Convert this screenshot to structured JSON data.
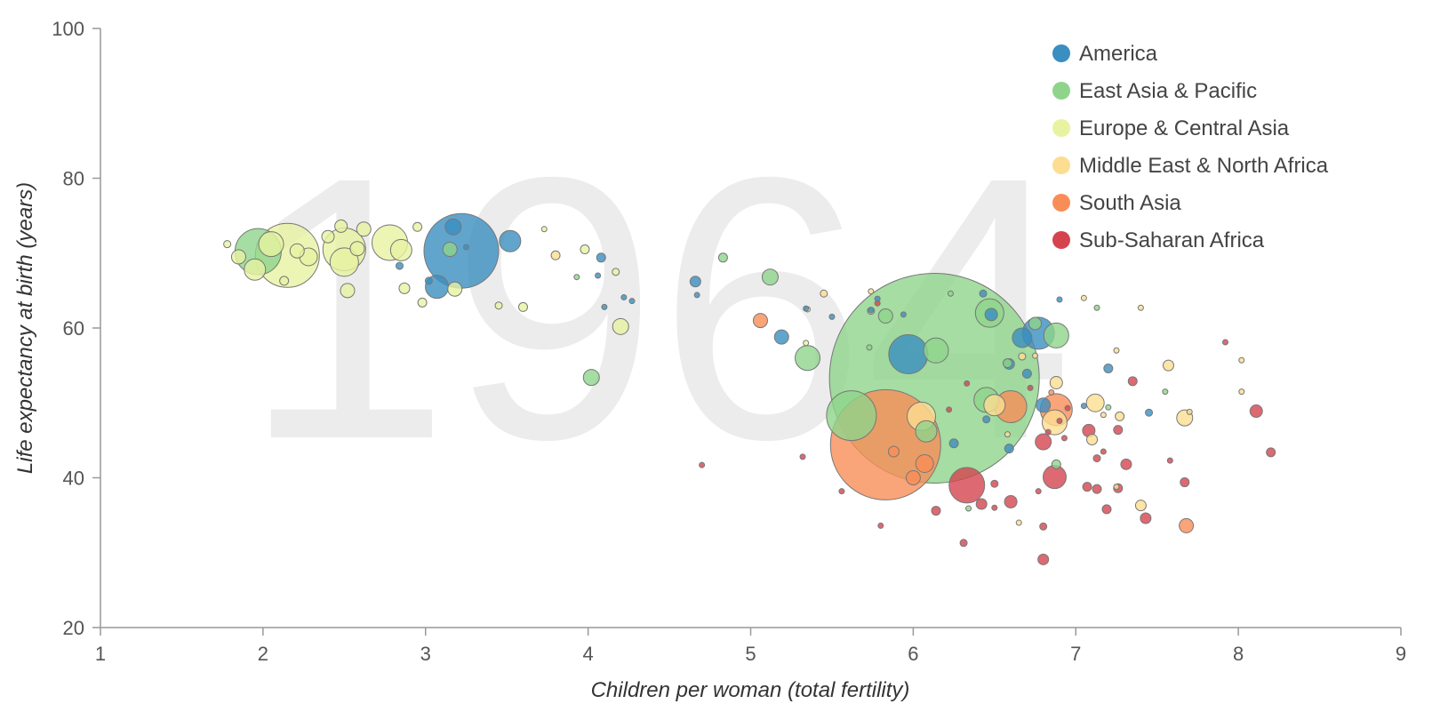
{
  "chart_data": {
    "type": "scatter",
    "subtype": "bubble",
    "year": "1964",
    "xlabel": "Children per woman (total fertility)",
    "ylabel": "Life expectancy at birth (years)",
    "xlim": [
      1,
      9
    ],
    "ylim": [
      20,
      100
    ],
    "xticks": [
      "1",
      "2",
      "3",
      "4",
      "5",
      "6",
      "7",
      "8",
      "9"
    ],
    "yticks": [
      "20",
      "40",
      "60",
      "80",
      "100"
    ],
    "legend_position": "top-right",
    "regions": [
      {
        "key": "america",
        "name": "America",
        "color": "#3a8ec0"
      },
      {
        "key": "eap",
        "name": "East Asia & Pacific",
        "color": "#8fd48b"
      },
      {
        "key": "eca",
        "name": "Europe & Central Asia",
        "color": "#e7f3a1"
      },
      {
        "key": "mena",
        "name": "Middle East & North Africa",
        "color": "#fcdd91"
      },
      {
        "key": "sa",
        "name": "South Asia",
        "color": "#f98d58"
      },
      {
        "key": "ssa",
        "name": "Sub-Saharan Africa",
        "color": "#d5434f"
      }
    ],
    "points": [
      {
        "region": "eca",
        "x": 2.15,
        "y": 69.7,
        "size": 36
      },
      {
        "region": "eca",
        "x": 2.05,
        "y": 71.2,
        "size": 14
      },
      {
        "region": "eca",
        "x": 2.5,
        "y": 70.5,
        "size": 24
      },
      {
        "region": "eca",
        "x": 2.78,
        "y": 71.4,
        "size": 20
      },
      {
        "region": "eca",
        "x": 2.85,
        "y": 70.4,
        "size": 12
      },
      {
        "region": "eca",
        "x": 2.5,
        "y": 68.8,
        "size": 16
      },
      {
        "region": "eca",
        "x": 1.95,
        "y": 67.8,
        "size": 12
      },
      {
        "region": "eca",
        "x": 1.85,
        "y": 69.5,
        "size": 8
      },
      {
        "region": "eca",
        "x": 2.28,
        "y": 69.5,
        "size": 10
      },
      {
        "region": "eca",
        "x": 2.48,
        "y": 73.6,
        "size": 7
      },
      {
        "region": "eca",
        "x": 2.62,
        "y": 73.2,
        "size": 8
      },
      {
        "region": "eca",
        "x": 2.58,
        "y": 70.6,
        "size": 8
      },
      {
        "region": "eca",
        "x": 2.4,
        "y": 72.2,
        "size": 7
      },
      {
        "region": "eca",
        "x": 2.21,
        "y": 70.3,
        "size": 8
      },
      {
        "region": "eca",
        "x": 2.52,
        "y": 65.0,
        "size": 8
      },
      {
        "region": "eca",
        "x": 2.87,
        "y": 65.3,
        "size": 6
      },
      {
        "region": "eca",
        "x": 2.98,
        "y": 63.4,
        "size": 5
      },
      {
        "region": "eca",
        "x": 2.95,
        "y": 73.5,
        "size": 5
      },
      {
        "region": "eca",
        "x": 3.18,
        "y": 65.2,
        "size": 8
      },
      {
        "region": "eca",
        "x": 3.6,
        "y": 62.8,
        "size": 5
      },
      {
        "region": "eca",
        "x": 3.45,
        "y": 63.0,
        "size": 4
      },
      {
        "region": "eca",
        "x": 3.98,
        "y": 70.5,
        "size": 5
      },
      {
        "region": "eca",
        "x": 4.17,
        "y": 67.5,
        "size": 4
      },
      {
        "region": "eca",
        "x": 4.2,
        "y": 60.2,
        "size": 9
      },
      {
        "region": "eca",
        "x": 3.73,
        "y": 73.2,
        "size": 3
      },
      {
        "region": "eca",
        "x": 5.35,
        "y": 62.5,
        "size": 3
      },
      {
        "region": "eca",
        "x": 5.34,
        "y": 58.0,
        "size": 3
      },
      {
        "region": "eca",
        "x": 1.78,
        "y": 71.2,
        "size": 4
      },
      {
        "region": "eca",
        "x": 2.13,
        "y": 66.3,
        "size": 5
      },
      {
        "region": "eap",
        "x": 1.97,
        "y": 70.2,
        "size": 26
      },
      {
        "region": "eap",
        "x": 3.15,
        "y": 70.5,
        "size": 8
      },
      {
        "region": "eap",
        "x": 4.83,
        "y": 69.4,
        "size": 5
      },
      {
        "region": "eap",
        "x": 3.93,
        "y": 66.8,
        "size": 3
      },
      {
        "region": "eap",
        "x": 5.12,
        "y": 66.8,
        "size": 9
      },
      {
        "region": "eap",
        "x": 4.02,
        "y": 53.4,
        "size": 9
      },
      {
        "region": "eap",
        "x": 5.35,
        "y": 56.0,
        "size": 14
      },
      {
        "region": "eap",
        "x": 6.13,
        "y": 53.3,
        "size": 118
      },
      {
        "region": "eap",
        "x": 5.62,
        "y": 48.3,
        "size": 28
      },
      {
        "region": "eap",
        "x": 6.14,
        "y": 57.0,
        "size": 14
      },
      {
        "region": "eap",
        "x": 6.08,
        "y": 46.2,
        "size": 12
      },
      {
        "region": "eap",
        "x": 6.47,
        "y": 62.0,
        "size": 16
      },
      {
        "region": "eap",
        "x": 6.88,
        "y": 59.0,
        "size": 14
      },
      {
        "region": "eap",
        "x": 6.45,
        "y": 50.4,
        "size": 14
      },
      {
        "region": "eap",
        "x": 5.74,
        "y": 62.3,
        "size": 4
      },
      {
        "region": "eap",
        "x": 5.83,
        "y": 61.6,
        "size": 8
      },
      {
        "region": "eap",
        "x": 6.23,
        "y": 64.6,
        "size": 3
      },
      {
        "region": "eap",
        "x": 6.58,
        "y": 55.3,
        "size": 5
      },
      {
        "region": "eap",
        "x": 6.88,
        "y": 41.8,
        "size": 5
      },
      {
        "region": "eap",
        "x": 7.13,
        "y": 62.7,
        "size": 3
      },
      {
        "region": "eap",
        "x": 7.2,
        "y": 49.4,
        "size": 3
      },
      {
        "region": "eap",
        "x": 7.55,
        "y": 51.5,
        "size": 3
      },
      {
        "region": "eap",
        "x": 5.73,
        "y": 57.4,
        "size": 3
      },
      {
        "region": "eap",
        "x": 6.34,
        "y": 35.9,
        "size": 3
      },
      {
        "region": "eap",
        "x": 6.75,
        "y": 60.6,
        "size": 7
      },
      {
        "region": "america",
        "x": 3.22,
        "y": 70.3,
        "size": 42
      },
      {
        "region": "america",
        "x": 3.07,
        "y": 65.5,
        "size": 13
      },
      {
        "region": "america",
        "x": 3.52,
        "y": 71.6,
        "size": 12
      },
      {
        "region": "america",
        "x": 3.17,
        "y": 73.5,
        "size": 9
      },
      {
        "region": "america",
        "x": 3.02,
        "y": 66.3,
        "size": 4
      },
      {
        "region": "america",
        "x": 2.84,
        "y": 68.3,
        "size": 4
      },
      {
        "region": "america",
        "x": 4.08,
        "y": 69.4,
        "size": 5
      },
      {
        "region": "america",
        "x": 4.06,
        "y": 67.0,
        "size": 3
      },
      {
        "region": "america",
        "x": 4.1,
        "y": 62.8,
        "size": 3
      },
      {
        "region": "america",
        "x": 4.22,
        "y": 64.1,
        "size": 3
      },
      {
        "region": "america",
        "x": 4.27,
        "y": 63.6,
        "size": 3
      },
      {
        "region": "america",
        "x": 4.66,
        "y": 66.2,
        "size": 6
      },
      {
        "region": "america",
        "x": 4.67,
        "y": 64.4,
        "size": 3
      },
      {
        "region": "america",
        "x": 5.19,
        "y": 58.8,
        "size": 8
      },
      {
        "region": "america",
        "x": 5.34,
        "y": 62.6,
        "size": 3
      },
      {
        "region": "america",
        "x": 5.5,
        "y": 61.5,
        "size": 3
      },
      {
        "region": "america",
        "x": 5.74,
        "y": 62.4,
        "size": 3
      },
      {
        "region": "america",
        "x": 5.78,
        "y": 63.9,
        "size": 3
      },
      {
        "region": "america",
        "x": 5.94,
        "y": 61.8,
        "size": 3
      },
      {
        "region": "america",
        "x": 5.97,
        "y": 56.5,
        "size": 22
      },
      {
        "region": "america",
        "x": 6.43,
        "y": 64.6,
        "size": 4
      },
      {
        "region": "america",
        "x": 6.48,
        "y": 61.8,
        "size": 7
      },
      {
        "region": "america",
        "x": 6.77,
        "y": 59.3,
        "size": 18
      },
      {
        "region": "america",
        "x": 6.67,
        "y": 58.7,
        "size": 11
      },
      {
        "region": "america",
        "x": 6.59,
        "y": 55.2,
        "size": 6
      },
      {
        "region": "america",
        "x": 6.9,
        "y": 63.8,
        "size": 3
      },
      {
        "region": "america",
        "x": 6.8,
        "y": 49.7,
        "size": 8
      },
      {
        "region": "america",
        "x": 6.59,
        "y": 43.9,
        "size": 5
      },
      {
        "region": "america",
        "x": 6.25,
        "y": 44.6,
        "size": 5
      },
      {
        "region": "america",
        "x": 6.7,
        "y": 53.9,
        "size": 5
      },
      {
        "region": "america",
        "x": 7.2,
        "y": 54.6,
        "size": 5
      },
      {
        "region": "america",
        "x": 7.05,
        "y": 49.6,
        "size": 3
      },
      {
        "region": "america",
        "x": 7.45,
        "y": 48.7,
        "size": 4
      },
      {
        "region": "america",
        "x": 6.45,
        "y": 47.8,
        "size": 4
      },
      {
        "region": "america",
        "x": 3.25,
        "y": 70.8,
        "size": 3
      },
      {
        "region": "mena",
        "x": 3.8,
        "y": 69.7,
        "size": 5
      },
      {
        "region": "mena",
        "x": 5.45,
        "y": 64.6,
        "size": 4
      },
      {
        "region": "mena",
        "x": 5.74,
        "y": 64.9,
        "size": 3
      },
      {
        "region": "mena",
        "x": 6.05,
        "y": 48.2,
        "size": 16
      },
      {
        "region": "mena",
        "x": 6.5,
        "y": 49.7,
        "size": 12
      },
      {
        "region": "mena",
        "x": 6.87,
        "y": 47.4,
        "size": 14
      },
      {
        "region": "mena",
        "x": 6.88,
        "y": 52.7,
        "size": 7
      },
      {
        "region": "mena",
        "x": 6.75,
        "y": 56.3,
        "size": 3
      },
      {
        "region": "mena",
        "x": 7.12,
        "y": 50.0,
        "size": 10
      },
      {
        "region": "mena",
        "x": 7.17,
        "y": 48.4,
        "size": 3
      },
      {
        "region": "mena",
        "x": 7.27,
        "y": 48.2,
        "size": 5
      },
      {
        "region": "mena",
        "x": 7.1,
        "y": 45.1,
        "size": 6
      },
      {
        "region": "mena",
        "x": 7.57,
        "y": 55.0,
        "size": 6
      },
      {
        "region": "mena",
        "x": 7.67,
        "y": 48.0,
        "size": 9
      },
      {
        "region": "mena",
        "x": 7.4,
        "y": 36.3,
        "size": 6
      },
      {
        "region": "mena",
        "x": 7.25,
        "y": 38.8,
        "size": 3
      },
      {
        "region": "mena",
        "x": 6.58,
        "y": 45.8,
        "size": 3
      },
      {
        "region": "mena",
        "x": 7.05,
        "y": 64.0,
        "size": 3
      },
      {
        "region": "mena",
        "x": 7.25,
        "y": 57.0,
        "size": 3
      },
      {
        "region": "mena",
        "x": 8.02,
        "y": 55.7,
        "size": 3
      },
      {
        "region": "mena",
        "x": 8.02,
        "y": 51.5,
        "size": 3
      },
      {
        "region": "mena",
        "x": 7.7,
        "y": 48.8,
        "size": 3
      },
      {
        "region": "mena",
        "x": 7.4,
        "y": 62.7,
        "size": 3
      },
      {
        "region": "mena",
        "x": 6.65,
        "y": 34.0,
        "size": 3
      },
      {
        "region": "mena",
        "x": 6.67,
        "y": 56.2,
        "size": 4
      },
      {
        "region": "sa",
        "x": 5.83,
        "y": 44.4,
        "size": 62
      },
      {
        "region": "sa",
        "x": 6.6,
        "y": 49.5,
        "size": 18
      },
      {
        "region": "sa",
        "x": 6.88,
        "y": 49.1,
        "size": 18
      },
      {
        "region": "sa",
        "x": 5.06,
        "y": 61.0,
        "size": 8
      },
      {
        "region": "sa",
        "x": 6.07,
        "y": 41.9,
        "size": 10
      },
      {
        "region": "sa",
        "x": 6.0,
        "y": 40.0,
        "size": 8
      },
      {
        "region": "sa",
        "x": 5.88,
        "y": 43.5,
        "size": 6
      },
      {
        "region": "sa",
        "x": 7.68,
        "y": 33.6,
        "size": 8
      },
      {
        "region": "sa",
        "x": 6.85,
        "y": 51.4,
        "size": 3
      },
      {
        "region": "ssa",
        "x": 6.33,
        "y": 39.0,
        "size": 20
      },
      {
        "region": "ssa",
        "x": 6.87,
        "y": 40.1,
        "size": 13
      },
      {
        "region": "ssa",
        "x": 6.8,
        "y": 44.8,
        "size": 9
      },
      {
        "region": "ssa",
        "x": 6.6,
        "y": 36.8,
        "size": 7
      },
      {
        "region": "ssa",
        "x": 6.42,
        "y": 36.5,
        "size": 6
      },
      {
        "region": "ssa",
        "x": 6.14,
        "y": 35.6,
        "size": 5
      },
      {
        "region": "ssa",
        "x": 6.31,
        "y": 31.3,
        "size": 4
      },
      {
        "region": "ssa",
        "x": 6.8,
        "y": 29.1,
        "size": 6
      },
      {
        "region": "ssa",
        "x": 6.8,
        "y": 33.5,
        "size": 4
      },
      {
        "region": "ssa",
        "x": 7.08,
        "y": 46.3,
        "size": 7
      },
      {
        "region": "ssa",
        "x": 7.07,
        "y": 38.8,
        "size": 5
      },
      {
        "region": "ssa",
        "x": 7.13,
        "y": 38.5,
        "size": 5
      },
      {
        "region": "ssa",
        "x": 7.13,
        "y": 42.6,
        "size": 4
      },
      {
        "region": "ssa",
        "x": 7.19,
        "y": 35.8,
        "size": 5
      },
      {
        "region": "ssa",
        "x": 7.26,
        "y": 38.6,
        "size": 5
      },
      {
        "region": "ssa",
        "x": 7.31,
        "y": 41.8,
        "size": 6
      },
      {
        "region": "ssa",
        "x": 7.35,
        "y": 52.9,
        "size": 5
      },
      {
        "region": "ssa",
        "x": 7.43,
        "y": 34.6,
        "size": 6
      },
      {
        "region": "ssa",
        "x": 7.26,
        "y": 46.4,
        "size": 5
      },
      {
        "region": "ssa",
        "x": 7.67,
        "y": 39.4,
        "size": 5
      },
      {
        "region": "ssa",
        "x": 7.92,
        "y": 58.1,
        "size": 3
      },
      {
        "region": "ssa",
        "x": 8.11,
        "y": 48.9,
        "size": 7
      },
      {
        "region": "ssa",
        "x": 8.2,
        "y": 43.4,
        "size": 5
      },
      {
        "region": "ssa",
        "x": 6.5,
        "y": 39.2,
        "size": 4
      },
      {
        "region": "ssa",
        "x": 6.5,
        "y": 36.0,
        "size": 3
      },
      {
        "region": "ssa",
        "x": 6.77,
        "y": 38.2,
        "size": 3
      },
      {
        "region": "ssa",
        "x": 6.83,
        "y": 46.1,
        "size": 3
      },
      {
        "region": "ssa",
        "x": 6.93,
        "y": 45.3,
        "size": 3
      },
      {
        "region": "ssa",
        "x": 6.95,
        "y": 49.3,
        "size": 3
      },
      {
        "region": "ssa",
        "x": 6.72,
        "y": 52.0,
        "size": 3
      },
      {
        "region": "ssa",
        "x": 6.22,
        "y": 49.1,
        "size": 3
      },
      {
        "region": "ssa",
        "x": 6.33,
        "y": 52.6,
        "size": 3
      },
      {
        "region": "ssa",
        "x": 5.8,
        "y": 33.6,
        "size": 3
      },
      {
        "region": "ssa",
        "x": 5.56,
        "y": 38.2,
        "size": 3
      },
      {
        "region": "ssa",
        "x": 4.7,
        "y": 41.7,
        "size": 3
      },
      {
        "region": "ssa",
        "x": 5.32,
        "y": 42.8,
        "size": 3
      },
      {
        "region": "ssa",
        "x": 5.78,
        "y": 63.3,
        "size": 3
      },
      {
        "region": "ssa",
        "x": 7.17,
        "y": 43.5,
        "size": 3
      },
      {
        "region": "ssa",
        "x": 7.58,
        "y": 42.3,
        "size": 3
      },
      {
        "region": "ssa",
        "x": 6.9,
        "y": 47.6,
        "size": 3
      }
    ]
  }
}
